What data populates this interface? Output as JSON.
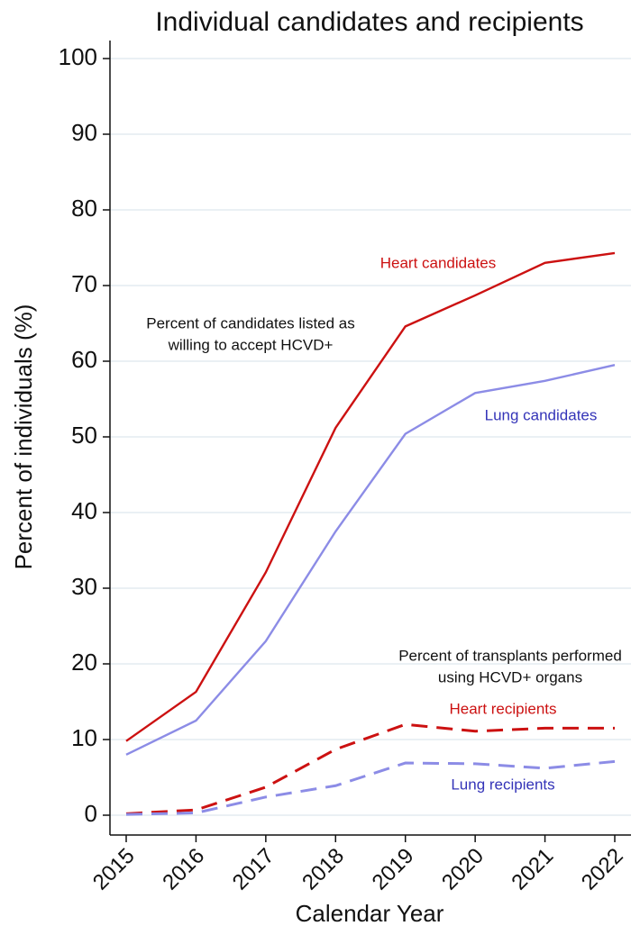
{
  "chart_data": {
    "type": "line",
    "title": "Individual candidates and recipients",
    "x_label": "Calendar Year",
    "y_label": "Percent of individuals (%)",
    "categories": [
      "2015",
      "2016",
      "2017",
      "2018",
      "2019",
      "2020",
      "2021",
      "2022"
    ],
    "series": [
      {
        "name": "Heart candidates",
        "color": "#cc1111",
        "label_color": "#cc1111",
        "dashed": false,
        "values": [
          9.8,
          16.3,
          32.1,
          51.2,
          64.6,
          68.7,
          73.0,
          74.3
        ]
      },
      {
        "name": "Lung candidates",
        "color": "#8c8ce6",
        "label_color": "#3434b8",
        "dashed": false,
        "values": [
          8.0,
          12.5,
          23.0,
          37.5,
          50.4,
          55.8,
          57.4,
          59.5
        ]
      },
      {
        "name": "Heart recipients",
        "color": "#cc1111",
        "label_color": "#cc1111",
        "dashed": true,
        "values": [
          0.2,
          0.7,
          3.7,
          8.7,
          12.0,
          11.1,
          11.5,
          11.5
        ]
      },
      {
        "name": "Lung recipients",
        "color": "#8c8ce6",
        "label_color": "#3434b8",
        "dashed": true,
        "values": [
          0.1,
          0.3,
          2.4,
          3.9,
          6.9,
          6.8,
          6.2,
          7.1
        ]
      }
    ],
    "annotations": [
      [
        "Percent of candidates listed as",
        "willing to accept HCVD+"
      ],
      [
        "Percent of transplants performed",
        "using HCVD+ organs"
      ]
    ],
    "ylim": [
      0,
      100
    ],
    "yticks": [
      0,
      10,
      20,
      30,
      40,
      50,
      60,
      70,
      80,
      90,
      100
    ],
    "grid": true
  }
}
